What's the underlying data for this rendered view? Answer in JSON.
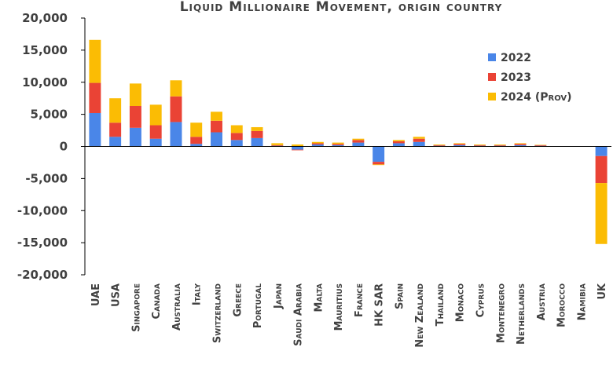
{
  "chart_data": {
    "type": "bar",
    "stacked": true,
    "title": "Liquid Millionaire Movement, origin country",
    "xlabel": "",
    "ylabel": "",
    "ylim": [
      -20000,
      20000
    ],
    "yticks": [
      20000,
      15000,
      10000,
      5000,
      0,
      -5000,
      -10000,
      -15000,
      -20000
    ],
    "ytick_labels": [
      "20,000",
      "15,000",
      "10,000",
      "5,000",
      "0",
      "-5,000",
      "-10,000",
      "-15,000",
      "-20,000"
    ],
    "grid": false,
    "legend_position": "right",
    "categories": [
      "UAE",
      "USA",
      "Singapore",
      "Canada",
      "Australia",
      "Italy",
      "Switzerland",
      "Greece",
      "Portugal",
      "Japan",
      "Saudi Arabia",
      "Malta",
      "Mauritius",
      "France",
      "HK SAR",
      "Spain",
      "New Zealand",
      "Thailand",
      "Monaco",
      "Cyprus",
      "Montenegro",
      "Netherlands",
      "Austria",
      "Morocco",
      "Namibia",
      "UK"
    ],
    "series": [
      {
        "name": "2022",
        "color": "#4a86e8",
        "values": [
          5200,
          1500,
          2900,
          1200,
          3800,
          400,
          2200,
          1000,
          1300,
          100,
          -500,
          300,
          200,
          600,
          -2400,
          500,
          700,
          100,
          200,
          100,
          100,
          200,
          100,
          0,
          0,
          -1500
        ]
      },
      {
        "name": "2023",
        "color": "#ea4335",
        "values": [
          4700,
          2200,
          3400,
          2100,
          4000,
          1100,
          1800,
          1100,
          1100,
          100,
          -100,
          200,
          200,
          400,
          -400,
          300,
          500,
          100,
          200,
          100,
          100,
          200,
          100,
          0,
          0,
          -4200
        ]
      },
      {
        "name": "2024 (Prov)",
        "color": "#fbbc04",
        "values": [
          6700,
          3800,
          3500,
          3200,
          2500,
          2200,
          1400,
          1200,
          600,
          300,
          300,
          200,
          200,
          200,
          -100,
          200,
          300,
          100,
          100,
          100,
          100,
          100,
          50,
          50,
          50,
          -9500
        ]
      }
    ]
  }
}
